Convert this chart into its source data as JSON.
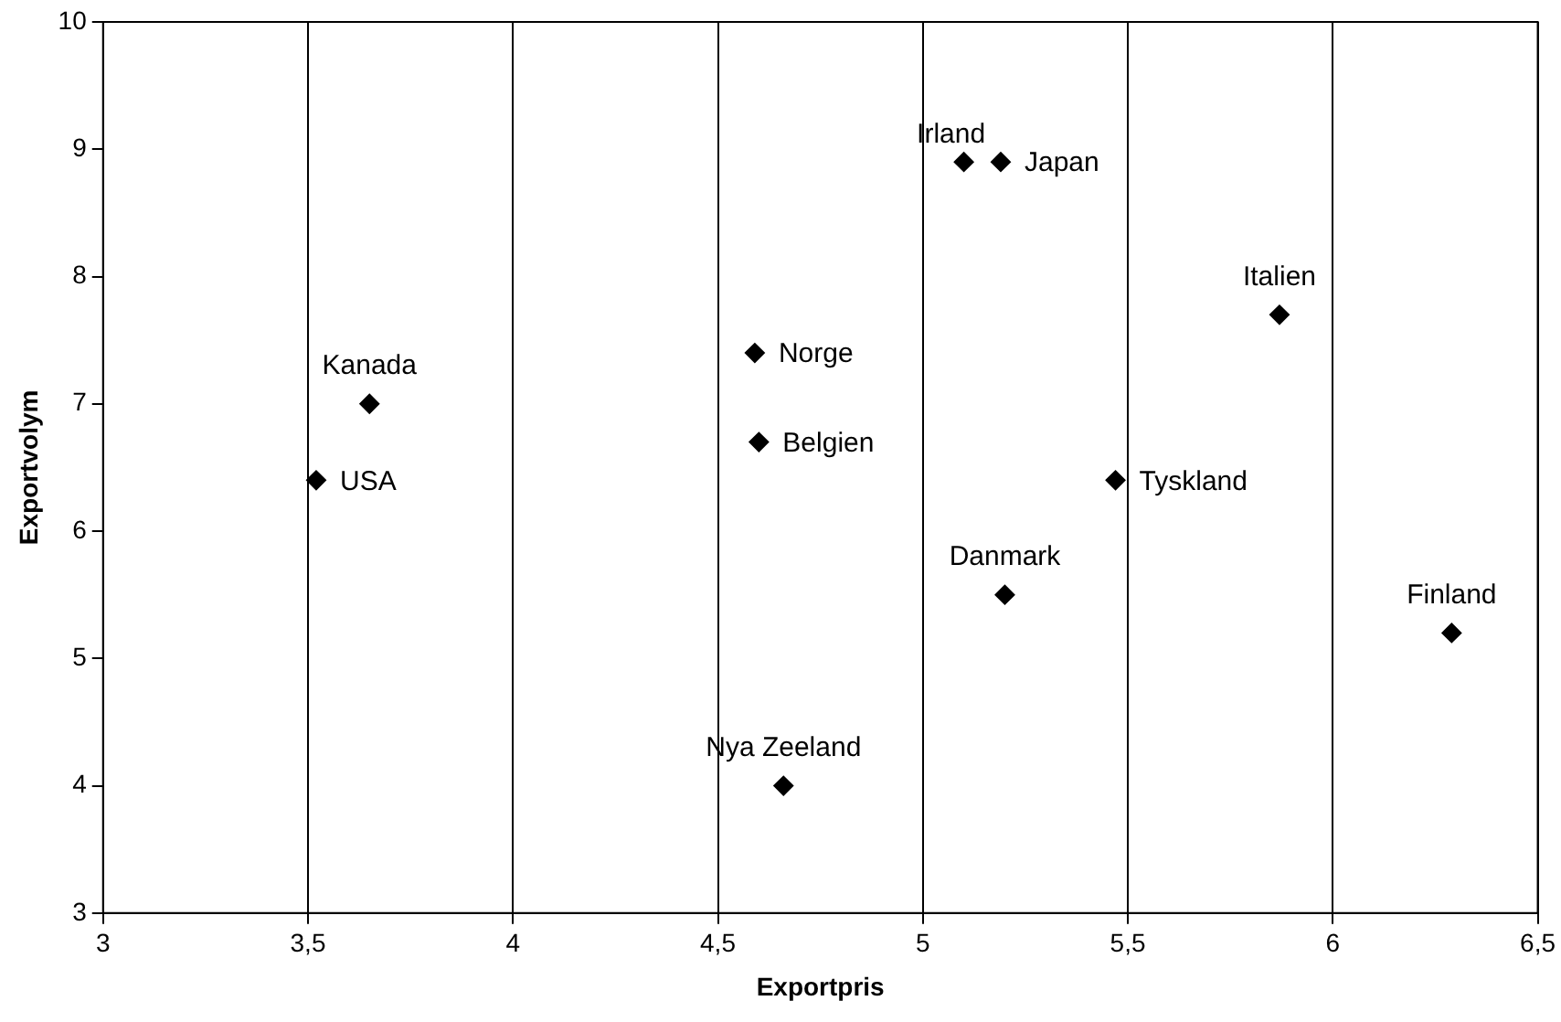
{
  "chart_data": {
    "type": "scatter",
    "xlabel": "Exportpris",
    "ylabel": "Exportvolym",
    "x": [
      3.52,
      3.65,
      4.59,
      4.6,
      4.66,
      5.1,
      5.19,
      5.2,
      5.47,
      5.87,
      6.29
    ],
    "series": [
      {
        "color": "#000000",
        "values": [
          6.4,
          7.0,
          7.4,
          6.7,
          4.0,
          8.9,
          8.9,
          5.5,
          6.4,
          7.7,
          5.2
        ]
      }
    ],
    "xlim": [
      3,
      6.5
    ],
    "xticks": [
      3,
      {
        "value": 3.5,
        "label": "3,5"
      },
      4,
      {
        "value": 4.5,
        "label": "4,5"
      },
      5,
      {
        "value": 5.5,
        "label": "5,5"
      },
      6,
      {
        "value": 6.5,
        "label": "6,5"
      }
    ],
    "ylim": [
      3,
      10
    ],
    "yticks": [
      3,
      4,
      5,
      6,
      7,
      8,
      9,
      10
    ],
    "grid": "x",
    "legend": false,
    "marker": "diamond",
    "annotations": [
      {
        "text": "USA",
        "x": 3.52,
        "y": 6.4
      },
      {
        "text": "Kanada",
        "x": 3.65,
        "y": 7.0
      },
      {
        "text": "Norge",
        "x": 4.59,
        "y": 7.4
      },
      {
        "text": "Belgien",
        "x": 4.6,
        "y": 6.7
      },
      {
        "text": "Nya Zeeland",
        "x": 4.66,
        "y": 4.0
      },
      {
        "text": "Irland",
        "x": 5.1,
        "y": 8.9
      },
      {
        "text": "Japan",
        "x": 5.19,
        "y": 8.9
      },
      {
        "text": "Danmark",
        "x": 5.2,
        "y": 5.5
      },
      {
        "text": "Tyskland",
        "x": 5.47,
        "y": 6.4
      },
      {
        "text": "Italien",
        "x": 5.87,
        "y": 7.7
      },
      {
        "text": "Finland",
        "x": 6.29,
        "y": 5.2
      }
    ]
  }
}
